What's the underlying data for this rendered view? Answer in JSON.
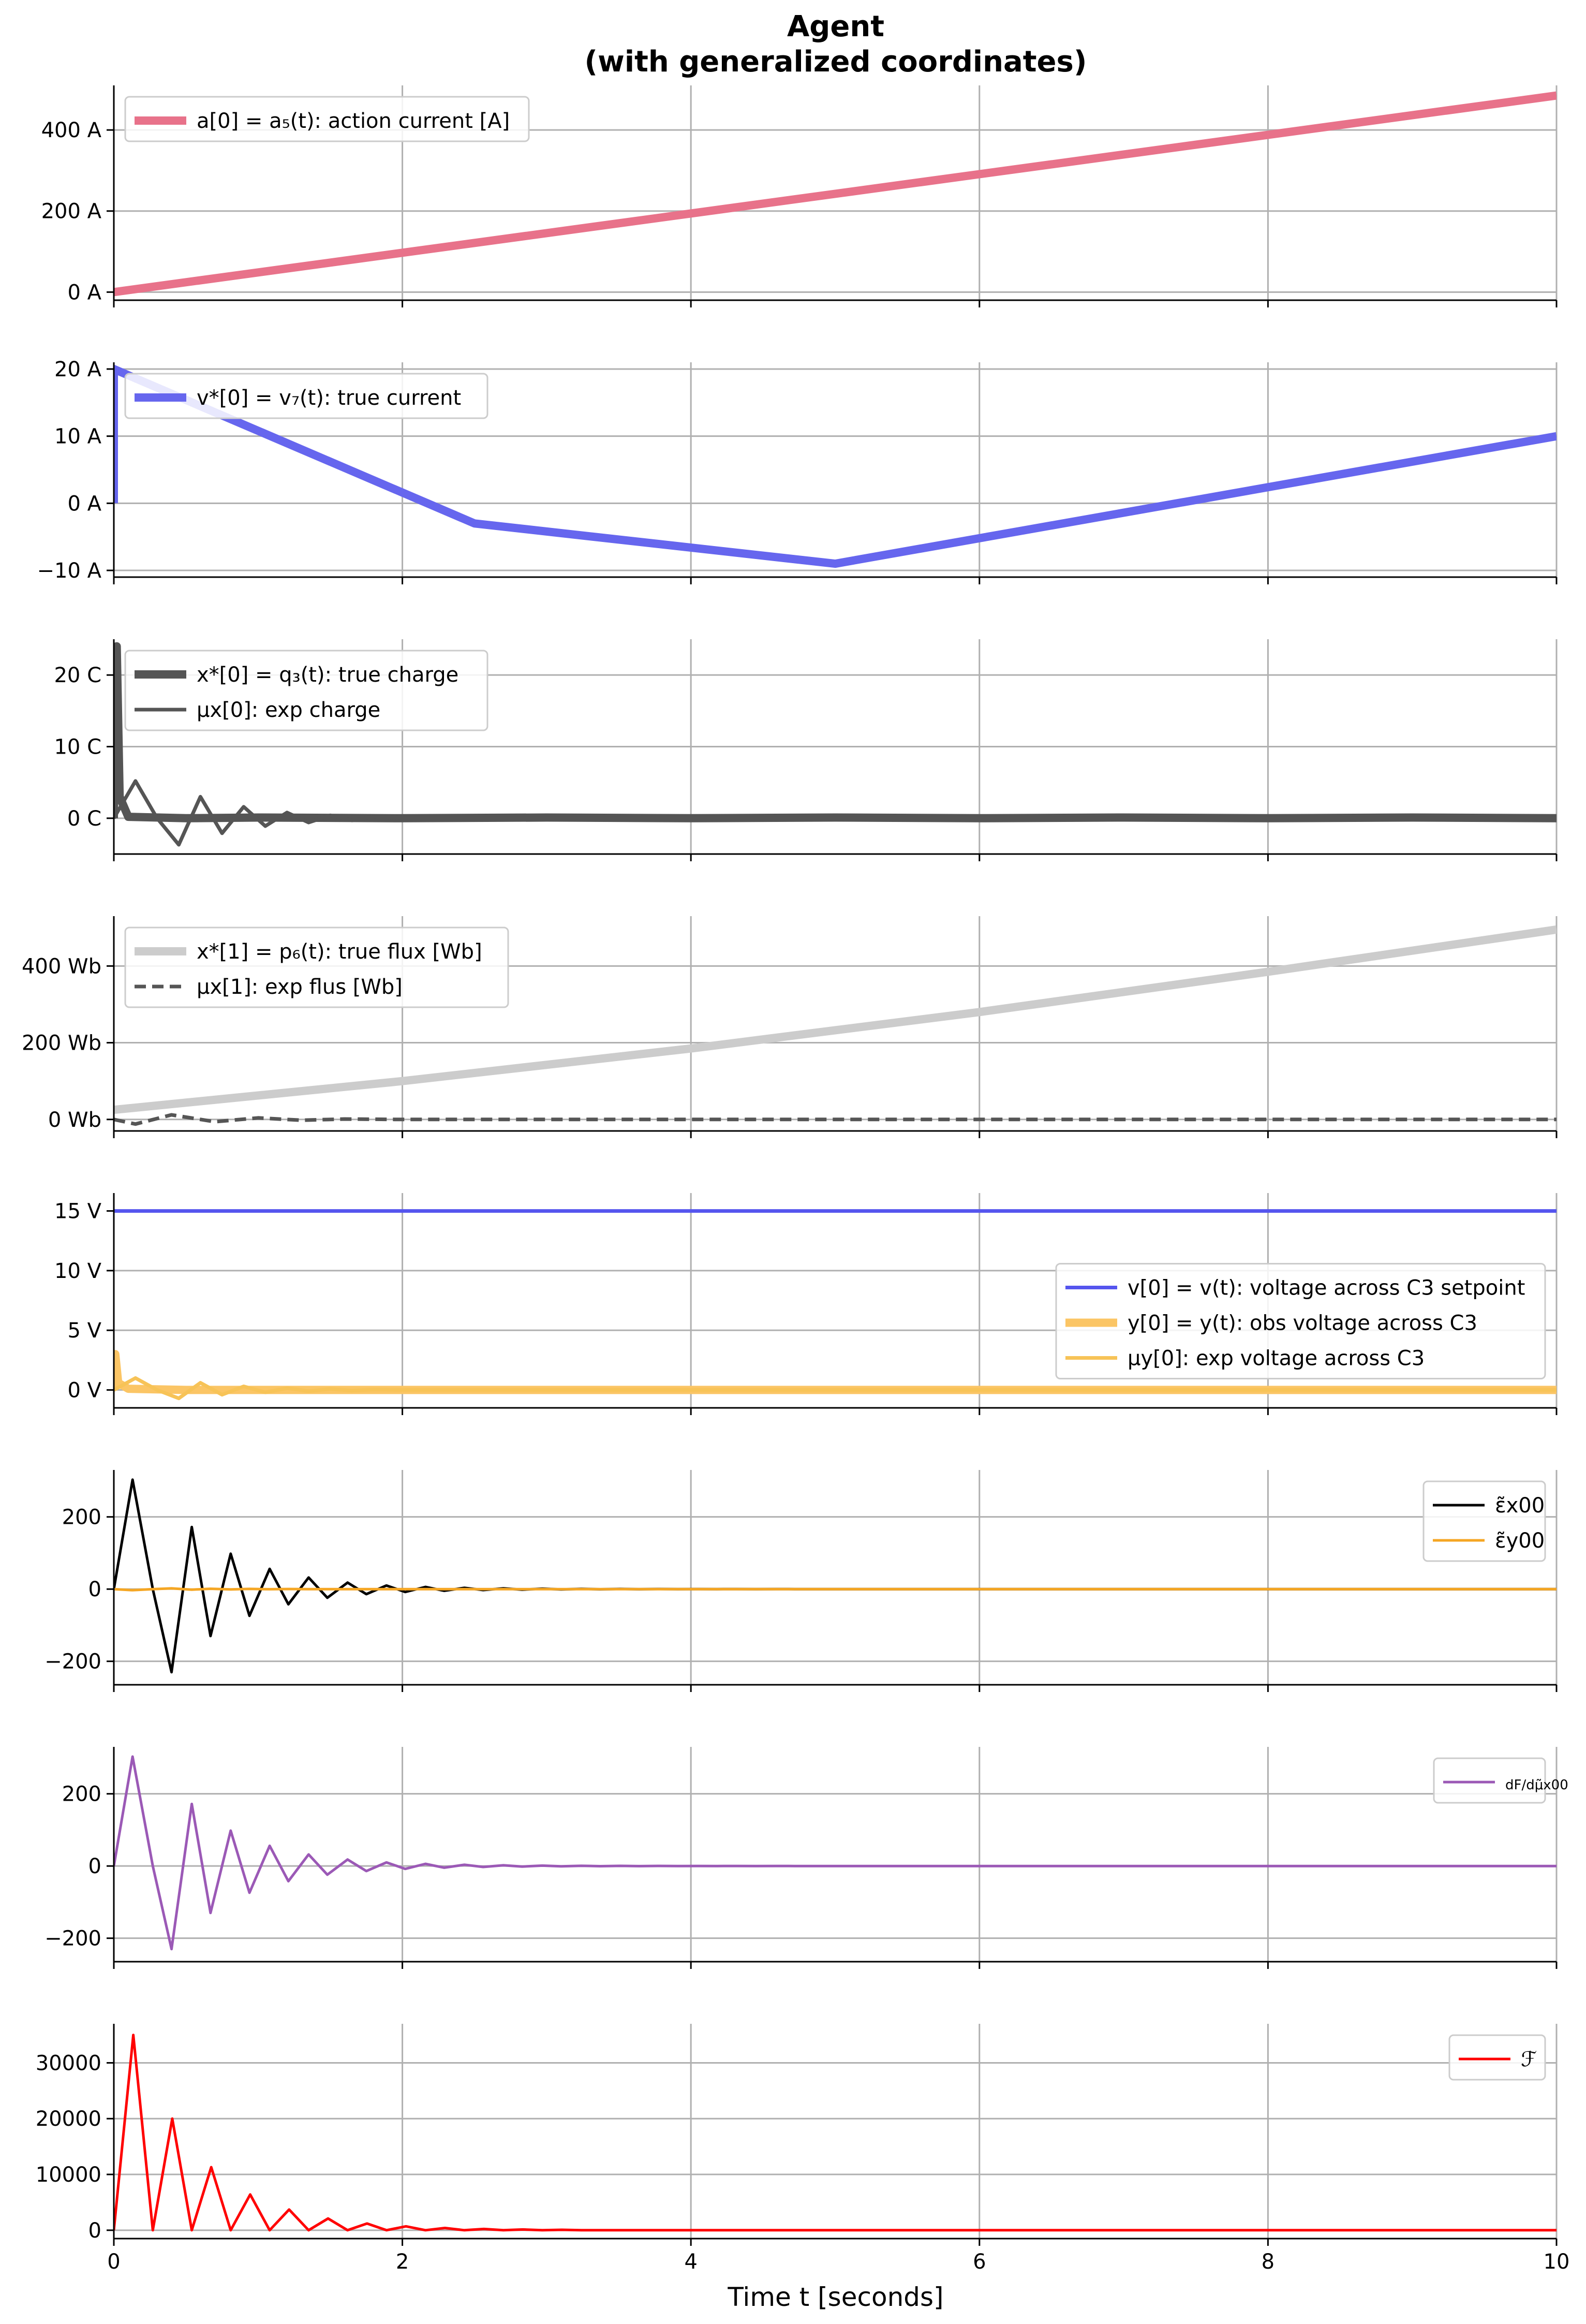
{
  "figure": {
    "title_line1": "Agent",
    "title_line2": "(with generalized coordinates)",
    "xlabel": "Time t [seconds]",
    "x_ticks": [
      "0",
      "2",
      "4",
      "6",
      "8",
      "10"
    ]
  },
  "chart_data": [
    {
      "type": "line",
      "title": "",
      "xlim": [
        0,
        10
      ],
      "ylim": [
        -20,
        510
      ],
      "y_ticks": [
        {
          "v": 0,
          "label": "0 A"
        },
        {
          "v": 200,
          "label": "200 A"
        },
        {
          "v": 400,
          "label": "400 A"
        }
      ],
      "grid": true,
      "legend_position": "top-left",
      "series": [
        {
          "name": "a[0] = a₅(t): action current [A]",
          "color": "#e8728a",
          "width": 16,
          "dash": "",
          "x": [
            0,
            10
          ],
          "y": [
            0,
            485
          ]
        }
      ]
    },
    {
      "type": "line",
      "title": "",
      "xlim": [
        0,
        10
      ],
      "ylim": [
        -11,
        21
      ],
      "y_ticks": [
        {
          "v": -10,
          "label": "−10 A"
        },
        {
          "v": 0,
          "label": "0 A"
        },
        {
          "v": 10,
          "label": "10 A"
        },
        {
          "v": 20,
          "label": "20 A"
        }
      ],
      "grid": true,
      "legend_position": "top-left",
      "series": [
        {
          "name": "v*[0] = v₇(t): true current",
          "color": "#6666ee",
          "width": 16,
          "dash": "",
          "x": [
            0,
            0,
            2.5,
            5,
            10
          ],
          "y": [
            0,
            20,
            -3,
            -9,
            10
          ]
        }
      ]
    },
    {
      "type": "line",
      "title": "",
      "xlim": [
        0,
        10
      ],
      "ylim": [
        -5,
        25
      ],
      "y_ticks": [
        {
          "v": 0,
          "label": "0 C"
        },
        {
          "v": 10,
          "label": "10 C"
        },
        {
          "v": 20,
          "label": "20 C"
        }
      ],
      "grid": true,
      "legend_position": "top-left",
      "series": [
        {
          "name": "x*[0] = q₃(t): true charge",
          "color": "#555555",
          "width": 16,
          "dash": "",
          "x": [
            0,
            0.01,
            0.02,
            0.04,
            0.1,
            0.5,
            1,
            2,
            3,
            4,
            5,
            6,
            7,
            8,
            9,
            10
          ],
          "y": [
            0,
            14,
            24,
            3,
            0.2,
            0,
            0.1,
            0,
            0.1,
            0,
            0.1,
            0,
            0.1,
            0,
            0.1,
            0
          ]
        },
        {
          "name": "μx[0]: exp charge",
          "color": "#555555",
          "width": 7,
          "dash": "",
          "x": [
            0,
            0.15,
            0.3,
            0.45,
            0.6,
            0.75,
            0.9,
            1.05,
            1.2,
            1.35,
            1.5,
            1.65,
            1.8,
            2.0,
            2.5,
            3,
            4,
            5,
            6,
            7,
            8,
            9,
            10
          ],
          "y": [
            0,
            5.2,
            0,
            -3.7,
            3,
            -2.1,
            1.6,
            -1.1,
            0.8,
            -0.6,
            0.4,
            -0.3,
            0.2,
            0,
            0,
            0,
            0,
            0,
            0,
            0,
            0,
            0,
            0
          ]
        }
      ]
    },
    {
      "type": "line",
      "title": "",
      "xlim": [
        0,
        10
      ],
      "ylim": [
        -30,
        530
      ],
      "y_ticks": [
        {
          "v": 0,
          "label": "0 Wb"
        },
        {
          "v": 200,
          "label": "200 Wb"
        },
        {
          "v": 400,
          "label": "400 Wb"
        }
      ],
      "grid": true,
      "legend_position": "top-left",
      "series": [
        {
          "name": "x*[1] = p₆(t): true flux [Wb]",
          "color": "#cccccc",
          "width": 16,
          "dash": "",
          "x": [
            0,
            2,
            4,
            6,
            8,
            10
          ],
          "y": [
            25,
            100,
            185,
            280,
            385,
            495
          ]
        },
        {
          "name": "μx[1]: exp flus [Wb]",
          "color": "#555555",
          "width": 7,
          "dash": "22,12",
          "x": [
            0,
            0.15,
            0.4,
            0.7,
            1.0,
            1.3,
            1.6,
            2.0,
            3,
            4,
            5,
            6,
            7,
            8,
            9,
            10
          ],
          "y": [
            0,
            -12,
            12,
            -6,
            4,
            -2,
            1,
            0,
            0,
            0,
            0,
            0,
            0,
            0,
            0,
            0
          ]
        }
      ]
    },
    {
      "type": "line",
      "title": "",
      "xlim": [
        0,
        10
      ],
      "ylim": [
        -1.5,
        16.5
      ],
      "y_ticks": [
        {
          "v": 0,
          "label": "0 V"
        },
        {
          "v": 5,
          "label": "5 V"
        },
        {
          "v": 10,
          "label": "10 V"
        },
        {
          "v": 15,
          "label": "15 V"
        }
      ],
      "grid": true,
      "legend_position": "center-right",
      "series": [
        {
          "name": "v[0] = v(t): voltage across C3 setpoint",
          "color": "#5555ee",
          "width": 7,
          "dash": "",
          "x": [
            0,
            10
          ],
          "y": [
            15,
            15
          ]
        },
        {
          "name": "y[0] = y(t): obs voltage across C3",
          "color": "#fbc565",
          "width": 16,
          "dash": "",
          "x": [
            0,
            0.01,
            0.03,
            0.1,
            0.5,
            1,
            2,
            3,
            4,
            5,
            6,
            7,
            8,
            9,
            10
          ],
          "y": [
            0,
            3,
            0.6,
            0.1,
            0,
            0,
            0,
            0,
            0,
            0,
            0,
            0,
            0,
            0,
            0
          ]
        },
        {
          "name": "μy[0]: exp voltage across C3",
          "color": "#f7c357",
          "width": 7,
          "dash": "",
          "x": [
            0,
            0.15,
            0.3,
            0.45,
            0.6,
            0.75,
            0.9,
            1.05,
            1.2,
            1.35,
            1.5,
            1.65,
            1.8,
            2.0,
            3,
            4,
            5,
            6,
            7,
            8,
            9,
            10
          ],
          "y": [
            0,
            1.0,
            0,
            -0.7,
            0.6,
            -0.4,
            0.3,
            -0.2,
            0.15,
            -0.1,
            0.08,
            -0.05,
            0.03,
            0,
            0,
            0,
            0,
            0,
            0,
            0,
            0,
            0
          ]
        }
      ]
    },
    {
      "type": "line",
      "title": "",
      "xlim": [
        0,
        10
      ],
      "ylim": [
        -265,
        330
      ],
      "y_ticks": [
        {
          "v": -200,
          "label": "−200"
        },
        {
          "v": 0,
          "label": "0"
        },
        {
          "v": 200,
          "label": "200"
        }
      ],
      "grid": true,
      "legend_position": "top-right",
      "series": [
        {
          "name": "ε̃x00",
          "color": "#000000",
          "width": 5,
          "dash": "",
          "x": [
            0,
            0.13,
            0.27,
            0.4,
            0.54,
            0.67,
            0.81,
            0.94,
            1.08,
            1.21,
            1.35,
            1.48,
            1.62,
            1.75,
            1.89,
            2.02,
            2.16,
            2.29,
            2.43,
            2.56,
            2.7,
            2.83,
            2.97,
            3.1,
            3.24,
            3.37,
            3.51,
            3.64,
            3.78,
            3.91,
            4.05,
            4.18,
            4.32,
            4.45,
            4.59,
            4.72,
            4.86,
            4.99,
            5.13,
            5.26,
            5.4,
            5.53,
            5.67,
            5.8,
            5.94,
            6.07,
            6.21,
            6.34,
            6.48,
            6.61,
            6.75,
            7.0,
            8.0,
            9.0,
            10.0
          ],
          "y": [
            0,
            303,
            0,
            -230,
            172,
            -130,
            98,
            -74,
            56,
            -42,
            32,
            -24,
            18,
            -14,
            10,
            -8,
            6,
            -4.6,
            3.5,
            -2.6,
            2,
            -1.5,
            1.1,
            -0.8,
            0.6,
            -0.5,
            0.35,
            -0.27,
            0.2,
            -0.15,
            0.12,
            -0.09,
            0.07,
            -0.05,
            0.04,
            -0.03,
            0.02,
            -0.015,
            0.011,
            -0.008,
            0.006,
            -0.005,
            0.004,
            -0.003,
            0.002,
            -0.0015,
            0.001,
            -0.0008,
            0.0006,
            -0.0004,
            0.0003,
            0,
            0,
            0,
            0
          ]
        },
        {
          "name": "ε̃y00",
          "color": "#f5a623",
          "width": 5,
          "dash": "",
          "x": [
            0,
            0.13,
            0.27,
            0.4,
            0.54,
            0.67,
            0.81,
            0.94,
            1.08,
            1.21,
            1.35,
            2,
            4,
            6,
            8,
            10
          ],
          "y": [
            0,
            -3,
            0,
            2,
            -1.5,
            1,
            -0.8,
            0.5,
            -0.3,
            0.2,
            0,
            0,
            0,
            0,
            0,
            0
          ]
        }
      ]
    },
    {
      "type": "line",
      "title": "",
      "xlim": [
        0,
        10
      ],
      "ylim": [
        -265,
        330
      ],
      "y_ticks": [
        {
          "v": -200,
          "label": "−200"
        },
        {
          "v": 0,
          "label": "0"
        },
        {
          "v": 200,
          "label": "200"
        }
      ],
      "grid": true,
      "legend_position": "top-right",
      "series": [
        {
          "name": "dF/dμ̃x00",
          "color": "#9b59b6",
          "width": 5,
          "dash": "",
          "x": [
            0,
            0.13,
            0.27,
            0.4,
            0.54,
            0.67,
            0.81,
            0.94,
            1.08,
            1.21,
            1.35,
            1.48,
            1.62,
            1.75,
            1.89,
            2.02,
            2.16,
            2.29,
            2.43,
            2.56,
            2.7,
            2.83,
            2.97,
            3.1,
            3.24,
            3.37,
            3.51,
            3.64,
            3.78,
            3.91,
            4.05,
            4.18,
            4.32,
            4.45,
            4.59,
            4.72,
            4.86,
            4.99,
            5.13,
            5.26,
            5.4,
            5.53,
            5.67,
            5.8,
            5.94,
            6.07,
            6.21,
            6.34,
            6.48,
            6.61,
            6.75,
            7.0,
            8.0,
            9.0,
            10.0
          ],
          "y": [
            0,
            303,
            0,
            -230,
            172,
            -130,
            98,
            -74,
            56,
            -42,
            32,
            -24,
            18,
            -14,
            10,
            -8,
            6,
            -4.6,
            3.5,
            -2.6,
            2,
            -1.5,
            1.1,
            -0.8,
            0.6,
            -0.5,
            0.35,
            -0.27,
            0.2,
            -0.15,
            0.12,
            -0.09,
            0.07,
            -0.05,
            0.04,
            -0.03,
            0.02,
            -0.015,
            0.011,
            -0.008,
            0.006,
            -0.005,
            0.004,
            -0.003,
            0.002,
            -0.0015,
            0.001,
            -0.0008,
            0.0006,
            -0.0004,
            0.0003,
            0,
            0,
            0,
            0
          ]
        }
      ]
    },
    {
      "type": "line",
      "title": "",
      "xlim": [
        0,
        10
      ],
      "ylim": [
        -1500,
        37000
      ],
      "y_ticks": [
        {
          "v": 0,
          "label": "0"
        },
        {
          "v": 10000,
          "label": "10000"
        },
        {
          "v": 20000,
          "label": "20000"
        },
        {
          "v": 30000,
          "label": "30000"
        }
      ],
      "grid": true,
      "legend_position": "top-right",
      "series": [
        {
          "name": "ℱ",
          "color": "#ff0000",
          "width": 5,
          "dash": "",
          "x": [
            0,
            0.135,
            0.27,
            0.405,
            0.54,
            0.675,
            0.81,
            0.945,
            1.08,
            1.215,
            1.35,
            1.485,
            1.62,
            1.755,
            1.89,
            2.025,
            2.16,
            2.295,
            2.43,
            2.565,
            2.7,
            2.835,
            2.97,
            3.105,
            3.24,
            3.5,
            4,
            6,
            8,
            10
          ],
          "y": [
            0,
            35000,
            0,
            20000,
            0,
            11300,
            0,
            6400,
            0,
            3700,
            0,
            2100,
            0,
            1200,
            0,
            700,
            0,
            400,
            0,
            230,
            0,
            130,
            0,
            75,
            0,
            0,
            0,
            0,
            0,
            0
          ]
        }
      ]
    }
  ]
}
